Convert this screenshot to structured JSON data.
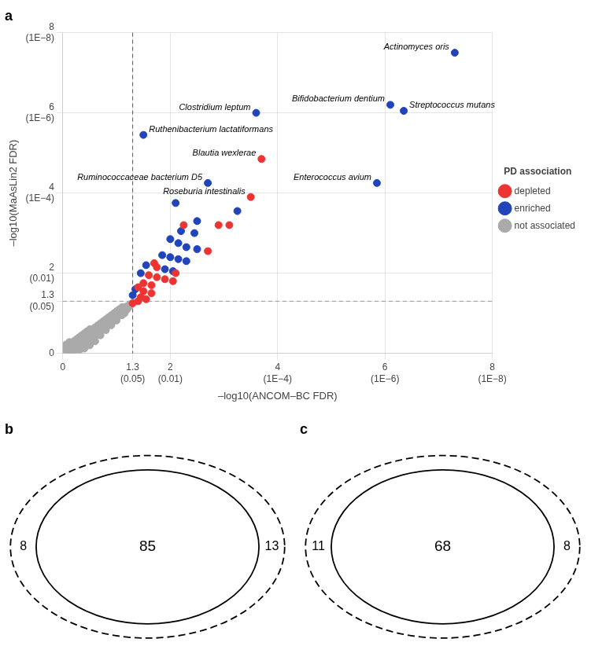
{
  "chart_data": [
    {
      "type": "scatter",
      "title": "a",
      "xlabel": "–log10(ANCOM–BC FDR)",
      "ylabel": "–log10(MaAsLin2 FDR)",
      "xlim": [
        0,
        8
      ],
      "ylim": [
        0,
        8
      ],
      "xticks": [
        0,
        {
          "value": 1.3,
          "label": [
            "1.3",
            "(0.05)"
          ]
        },
        {
          "value": 2,
          "label": [
            "2",
            "(0.01)"
          ]
        },
        {
          "value": 4,
          "label": [
            "4",
            "(1E−4)"
          ]
        },
        {
          "value": 6,
          "label": [
            "6",
            "(1E−6)"
          ]
        },
        {
          "value": 8,
          "label": [
            "8",
            "(1E−8)"
          ]
        }
      ],
      "yticks": [
        0,
        {
          "value": 1.3,
          "label": [
            "1.3",
            "(0.05)"
          ]
        },
        {
          "value": 2,
          "label": [
            "2",
            "(0.01)"
          ]
        },
        {
          "value": 4,
          "label": [
            "4",
            "(1E−4)"
          ]
        },
        {
          "value": 6,
          "label": [
            "6",
            "(1E−6)"
          ]
        },
        {
          "value": 8,
          "label": [
            "8",
            "(1E−8)"
          ]
        }
      ],
      "grid": true,
      "legend": "right",
      "legend_title": "PD association",
      "series": [
        {
          "name": "depleted",
          "color": "#EE3333",
          "x": [
            3.7,
            3.5,
            2.25,
            2.9,
            3.1,
            2.7,
            1.7,
            1.75,
            2.1,
            1.6,
            1.75,
            1.9,
            2.05,
            1.5,
            1.65,
            1.4,
            1.5,
            1.65,
            1.45,
            1.55,
            1.4,
            1.3
          ],
          "values": [
            4.85,
            3.9,
            3.2,
            3.2,
            3.2,
            2.55,
            2.25,
            2.15,
            2.0,
            1.95,
            1.9,
            1.85,
            1.8,
            1.75,
            1.7,
            1.65,
            1.55,
            1.5,
            1.4,
            1.35,
            1.3,
            1.25
          ]
        },
        {
          "name": "enriched",
          "color": "#2244BB",
          "x": [
            7.3,
            6.1,
            6.35,
            3.6,
            1.5,
            2.7,
            5.85,
            2.1,
            3.25,
            2.5,
            2.2,
            2.45,
            2.0,
            2.15,
            2.3,
            2.5,
            1.85,
            2.0,
            2.15,
            2.3,
            1.55,
            1.9,
            2.05,
            1.45,
            1.35,
            1.3
          ],
          "values": [
            7.5,
            6.2,
            6.05,
            6.0,
            5.45,
            4.25,
            4.25,
            3.75,
            3.55,
            3.3,
            3.05,
            3.0,
            2.85,
            2.75,
            2.65,
            2.6,
            2.45,
            2.4,
            2.35,
            2.3,
            2.2,
            2.1,
            2.05,
            2.0,
            1.6,
            1.45
          ]
        },
        {
          "name": "not associated",
          "color": "#AAAAAA",
          "x": [
            0.05,
            0.1,
            0.15,
            0.2,
            0.25,
            0.08,
            0.12,
            0.18,
            0.22,
            0.28,
            0.3,
            0.35,
            0.4,
            0.45,
            0.5,
            0.1,
            0.15,
            0.2,
            0.25,
            0.3,
            0.35,
            0.4,
            0.45,
            0.5,
            0.55,
            0.6,
            0.65,
            0.7,
            0.75,
            0.8,
            0.85,
            0.9,
            0.95,
            1.0,
            1.05,
            1.1,
            1.15,
            1.2,
            1.25,
            0.55,
            0.6,
            0.65,
            0.7,
            0.75,
            0.8,
            0.85,
            0.9,
            0.95,
            1.0,
            1.05,
            1.1,
            0.2,
            0.25,
            0.3,
            0.35,
            0.4,
            0.45,
            0.5,
            0.55,
            0.6,
            0.65,
            0.7,
            0.75,
            0.8,
            0.85,
            0.9,
            0.95,
            1.0,
            1.05,
            1.1,
            1.15,
            1.2,
            1.25,
            0.15,
            0.3,
            0.5,
            0.7,
            0.9,
            1.1,
            1.25,
            0.4,
            0.6,
            0.8,
            1.0,
            1.2,
            0.35,
            0.55,
            0.75,
            0.95,
            1.15,
            0.05,
            0.1,
            0.2,
            0.3,
            0.4,
            0.5,
            0.6,
            0.7,
            0.8,
            0.9,
            1.0,
            1.1,
            1.15,
            0.08,
            0.18,
            0.28,
            0.38,
            0.48,
            0.58,
            0.68,
            0.78,
            0.88,
            0.98,
            1.08,
            0.12,
            0.22,
            0.32,
            0.42,
            0.52,
            0.62,
            0.72,
            0.82,
            0.92,
            1.02,
            1.12,
            0.06,
            0.16,
            0.26,
            0.36,
            0.46,
            0.56,
            0.66,
            0.76,
            0.86,
            0.96,
            1.06
          ],
          "values": [
            0.15,
            0.2,
            0.25,
            0.3,
            0.35,
            0.1,
            0.15,
            0.22,
            0.28,
            0.35,
            0.4,
            0.45,
            0.5,
            0.55,
            0.6,
            0.05,
            0.08,
            0.12,
            0.18,
            0.25,
            0.3,
            0.38,
            0.42,
            0.48,
            0.55,
            0.62,
            0.68,
            0.72,
            0.78,
            0.82,
            0.88,
            0.92,
            0.95,
            1.0,
            1.05,
            1.1,
            1.15,
            1.18,
            1.22,
            0.6,
            0.65,
            0.7,
            0.75,
            0.8,
            0.85,
            0.9,
            0.95,
            1.0,
            1.05,
            1.1,
            1.15,
            0.08,
            0.1,
            0.15,
            0.2,
            0.28,
            0.35,
            0.4,
            0.48,
            0.55,
            0.6,
            0.65,
            0.7,
            0.75,
            0.8,
            0.85,
            0.9,
            0.95,
            1.0,
            1.05,
            1.1,
            1.15,
            1.2,
            0.05,
            0.12,
            0.3,
            0.55,
            0.78,
            1.0,
            1.18,
            0.18,
            0.42,
            0.65,
            0.88,
            1.1,
            0.22,
            0.45,
            0.68,
            0.92,
            1.12,
            0.05,
            0.1,
            0.05,
            0.08,
            0.12,
            0.2,
            0.3,
            0.45,
            0.58,
            0.7,
            0.82,
            0.95,
            1.0,
            0.18,
            0.08,
            0.2,
            0.32,
            0.4,
            0.52,
            0.62,
            0.72,
            0.82,
            0.9,
            1.02,
            0.28,
            0.18,
            0.1,
            0.22,
            0.35,
            0.45,
            0.58,
            0.68,
            0.78,
            0.92,
            1.05,
            0.22,
            0.12,
            0.25,
            0.38,
            0.28,
            0.38,
            0.5,
            0.62,
            0.75,
            0.85,
            0.98
          ]
        }
      ],
      "reference_lines": [
        {
          "axis": "x",
          "value": 1.3
        },
        {
          "axis": "y",
          "value": 1.3
        }
      ],
      "annotations": [
        {
          "x": 7.3,
          "y": 7.5,
          "text": "Actinomyces oris"
        },
        {
          "x": 6.1,
          "y": 6.2,
          "text": "Bifidobacterium dentium"
        },
        {
          "x": 6.35,
          "y": 6.05,
          "text": "Streptococcus mutans"
        },
        {
          "x": 3.6,
          "y": 6.0,
          "text": "Clostridium leptum"
        },
        {
          "x": 1.5,
          "y": 5.45,
          "text": "Ruthenibacterium lactatiformans"
        },
        {
          "x": 3.7,
          "y": 4.85,
          "text": "Blautia wexlerae"
        },
        {
          "x": 2.7,
          "y": 4.25,
          "text": "Ruminococcaceae bacterium D5"
        },
        {
          "x": 5.85,
          "y": 4.25,
          "text": "Enterococcus avium"
        },
        {
          "x": 3.5,
          "y": 3.9,
          "text": "Roseburia intestinalis"
        }
      ]
    },
    {
      "type": "venn",
      "title": "b",
      "left_only": 8,
      "intersection": 85,
      "right_only": 13
    },
    {
      "type": "venn",
      "title": "c",
      "left_only": 11,
      "intersection": 68,
      "right_only": 8
    }
  ]
}
